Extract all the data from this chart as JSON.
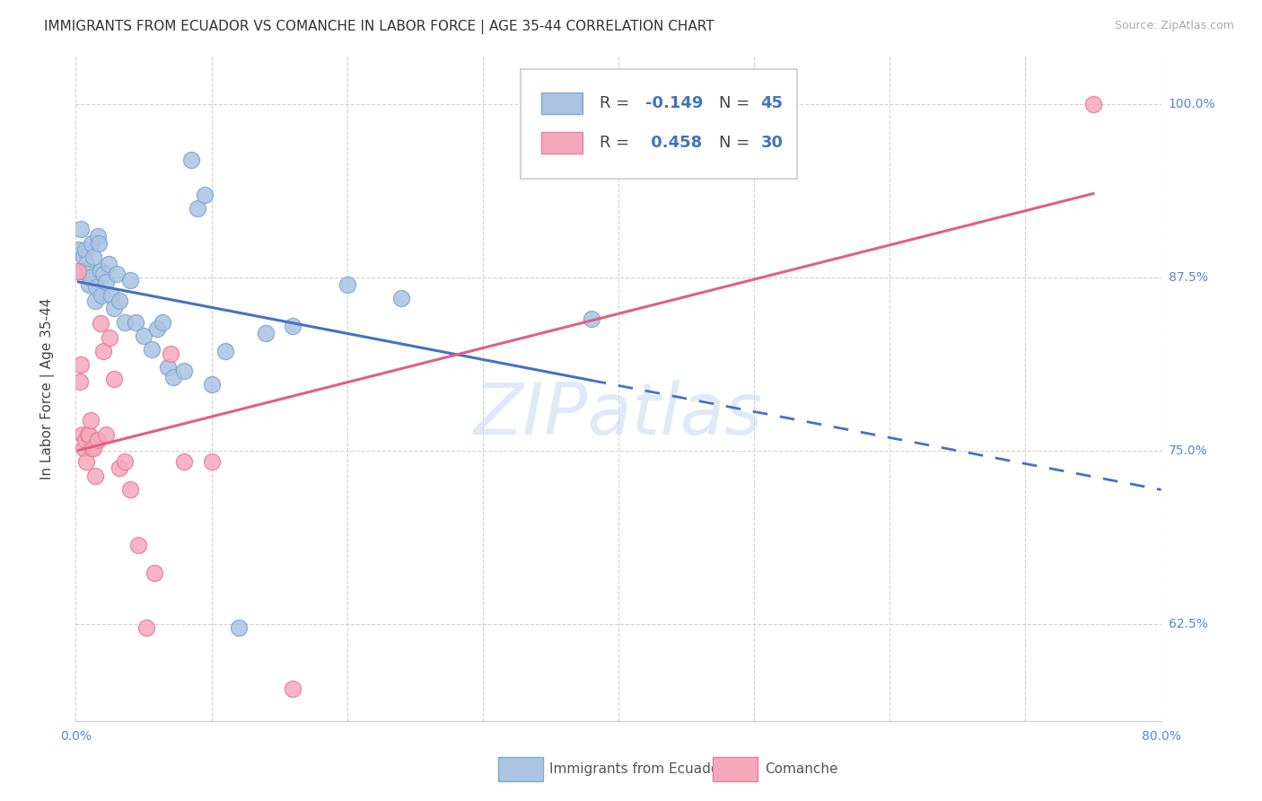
{
  "title": "IMMIGRANTS FROM ECUADOR VS COMANCHE IN LABOR FORCE | AGE 35-44 CORRELATION CHART",
  "source": "Source: ZipAtlas.com",
  "ylabel": "In Labor Force | Age 35-44",
  "xlim": [
    0.0,
    0.8
  ],
  "ylim": [
    0.555,
    1.035
  ],
  "xtick_positions": [
    0.0,
    0.1,
    0.2,
    0.3,
    0.4,
    0.5,
    0.6,
    0.7,
    0.8
  ],
  "xticklabels": [
    "0.0%",
    "",
    "",
    "",
    "",
    "",
    "",
    "",
    "80.0%"
  ],
  "ytick_positions": [
    0.625,
    0.75,
    0.875,
    1.0
  ],
  "ytick_labels": [
    "62.5%",
    "75.0%",
    "87.5%",
    "100.0%"
  ],
  "watermark": "ZIPatlas",
  "ecuador_color": "#aac4e2",
  "comanche_color": "#f5a8bc",
  "ecuador_edge": "#80aad0",
  "comanche_edge": "#e8809a",
  "line_ecuador_color": "#4472c4",
  "line_comanche_color": "#e06080",
  "ecuador_points_x": [
    0.002,
    0.004,
    0.005,
    0.006,
    0.007,
    0.008,
    0.009,
    0.01,
    0.011,
    0.012,
    0.013,
    0.014,
    0.015,
    0.016,
    0.017,
    0.018,
    0.019,
    0.02,
    0.022,
    0.024,
    0.026,
    0.028,
    0.03,
    0.032,
    0.036,
    0.04,
    0.044,
    0.05,
    0.056,
    0.06,
    0.064,
    0.068,
    0.072,
    0.08,
    0.085,
    0.09,
    0.095,
    0.1,
    0.11,
    0.12,
    0.14,
    0.16,
    0.2,
    0.24,
    0.38
  ],
  "ecuador_points_y": [
    0.895,
    0.91,
    0.88,
    0.89,
    0.895,
    0.885,
    0.878,
    0.87,
    0.875,
    0.9,
    0.89,
    0.858,
    0.868,
    0.905,
    0.9,
    0.88,
    0.862,
    0.878,
    0.872,
    0.885,
    0.862,
    0.853,
    0.878,
    0.858,
    0.843,
    0.873,
    0.843,
    0.833,
    0.823,
    0.838,
    0.843,
    0.81,
    0.803,
    0.808,
    0.96,
    0.925,
    0.935,
    0.798,
    0.822,
    0.622,
    0.835,
    0.84,
    0.87,
    0.86,
    0.845
  ],
  "comanche_points_x": [
    0.002,
    0.003,
    0.004,
    0.005,
    0.006,
    0.007,
    0.008,
    0.009,
    0.01,
    0.011,
    0.012,
    0.013,
    0.014,
    0.016,
    0.018,
    0.02,
    0.022,
    0.025,
    0.028,
    0.032,
    0.036,
    0.04,
    0.046,
    0.052,
    0.058,
    0.07,
    0.08,
    0.1,
    0.16,
    0.75
  ],
  "comanche_points_y": [
    0.88,
    0.8,
    0.812,
    0.762,
    0.752,
    0.758,
    0.742,
    0.762,
    0.762,
    0.772,
    0.752,
    0.752,
    0.732,
    0.758,
    0.842,
    0.822,
    0.762,
    0.832,
    0.802,
    0.738,
    0.742,
    0.722,
    0.682,
    0.622,
    0.662,
    0.82,
    0.742,
    0.742,
    0.578,
    1.0
  ],
  "title_fontsize": 11,
  "ylabel_fontsize": 11,
  "tick_fontsize": 10,
  "source_fontsize": 9,
  "legend_fontsize": 13
}
